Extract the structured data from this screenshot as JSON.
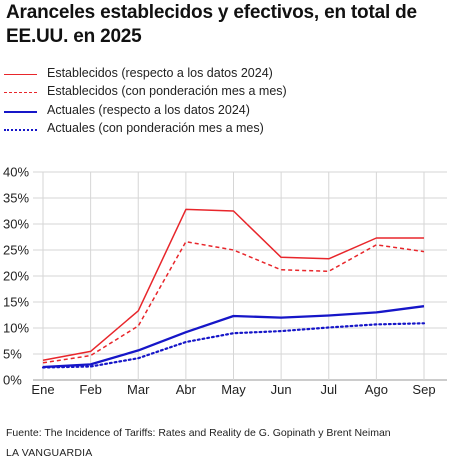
{
  "title": "Aranceles establecidos y efectivos, en total de EE.UU. en 2025",
  "colors": {
    "red": "#e8262b",
    "blue": "#1616c8",
    "grid": "#d6d6d6"
  },
  "chart_data": {
    "type": "line",
    "title": "Aranceles establecidos y efectivos, en total de EE.UU. en 2025",
    "categories": [
      "Ene",
      "Feb",
      "Mar",
      "Abr",
      "May",
      "Jun",
      "Jul",
      "Ago",
      "Sep"
    ],
    "y_ticks": [
      "0%",
      "5%",
      "10%",
      "15%",
      "20%",
      "25%",
      "30%",
      "35%",
      "40%"
    ],
    "ylim": [
      0,
      40
    ],
    "grid": true,
    "legend": "top",
    "series": [
      {
        "name": "Establecidos (respecto a los datos 2024)",
        "color": "#e8262b",
        "style": "solid",
        "values": [
          3.8,
          5.5,
          13.3,
          32.8,
          32.5,
          23.6,
          23.3,
          27.3,
          27.3
        ]
      },
      {
        "name": "Establecidos (con ponderación mes a mes)",
        "color": "#e8262b",
        "style": "dashed",
        "values": [
          3.3,
          4.7,
          10.4,
          26.6,
          25.0,
          21.2,
          20.9,
          26.0,
          24.7
        ]
      },
      {
        "name": "Actuales (respecto a los datos 2024)",
        "color": "#1616c8",
        "style": "solid",
        "values": [
          2.5,
          3.0,
          5.7,
          9.2,
          12.3,
          12.0,
          12.4,
          13.0,
          14.2
        ]
      },
      {
        "name": "Actuales (con ponderación mes a mes)",
        "color": "#1616c8",
        "style": "dotted",
        "values": [
          2.4,
          2.6,
          4.2,
          7.3,
          9.0,
          9.4,
          10.1,
          10.7,
          10.9
        ]
      }
    ]
  },
  "footer": {
    "source": "Fuente: The Incidence of Tariffs: Rates and Reality de G. Gopinath y Brent Neiman",
    "brand": "LA VANGUARDIA"
  }
}
